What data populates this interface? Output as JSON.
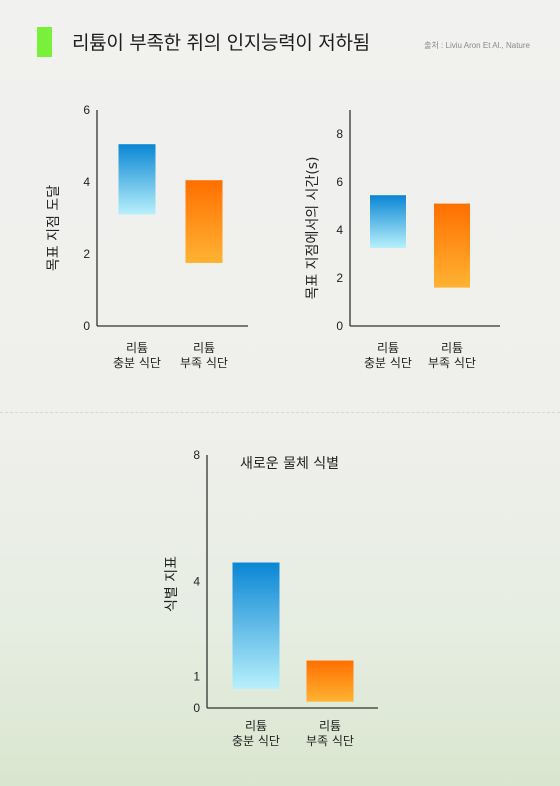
{
  "header": {
    "title": "리튬이 부족한 쥐의 인지능력이 저하됨",
    "source": "출처 : Liviu Aron Et Al., Nature",
    "accent_color": "#79f03a"
  },
  "colors": {
    "blue_top": "#0a86d4",
    "blue_bottom": "#b8f0fb",
    "orange_top": "#ff6f00",
    "orange_bottom": "#ffb333",
    "axis": "#333333"
  },
  "chart_data": [
    {
      "type": "bar",
      "ylabel": "목표 지점 도달",
      "ylim": [
        0,
        6
      ],
      "yticks": [
        0,
        2,
        4,
        6
      ],
      "categories": [
        [
          "리튬",
          "충분 식단"
        ],
        [
          "리튬",
          "부족 식단"
        ]
      ],
      "ranges": [
        [
          3.1,
          5.05
        ],
        [
          1.75,
          4.05
        ]
      ]
    },
    {
      "type": "bar",
      "ylabel": "목표 지점에서의 시간(s)",
      "ylim": [
        0,
        9
      ],
      "yticks": [
        0,
        2,
        4,
        6,
        8
      ],
      "categories": [
        [
          "리튬",
          "충분 식단"
        ],
        [
          "리튬",
          "부족 식단"
        ]
      ],
      "ranges": [
        [
          3.25,
          5.45
        ],
        [
          1.6,
          5.1
        ]
      ]
    },
    {
      "type": "bar",
      "title": "새로운 물체 식별",
      "ylabel": "식별 지표",
      "ylim": [
        0,
        8
      ],
      "yticks": [
        0,
        1,
        4,
        8
      ],
      "categories": [
        [
          "리튬",
          "충분 식단"
        ],
        [
          "리튬",
          "부족 식단"
        ]
      ],
      "ranges": [
        [
          0.6,
          4.6
        ],
        [
          0.2,
          1.5
        ]
      ]
    }
  ]
}
